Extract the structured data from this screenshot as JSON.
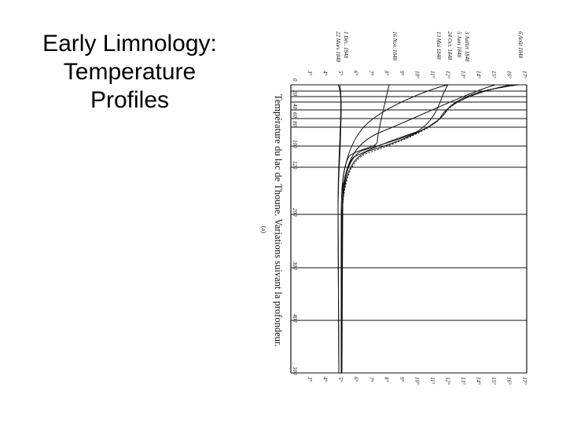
{
  "slide": {
    "title_lines": [
      "Early Limnology:",
      "Temperature",
      "Profiles"
    ]
  },
  "figure": {
    "caption": "Température du lac de Thoune. Variations suivant la profondeur.",
    "panel_label": "(a)",
    "depth_labels": [
      "0",
      "20",
      "40",
      "60",
      "80",
      "100",
      "120",
      "200",
      "300",
      "400",
      "500"
    ],
    "temperature_labels": [
      "3°",
      "4°",
      "5°",
      "6°",
      "7°",
      "8°",
      "9°",
      "10°",
      "11°",
      "12°",
      "13°",
      "14°",
      "15°",
      "16°",
      "17°"
    ],
    "profile_labels": [
      "22 Mars 1848",
      "1 Déc. 1848",
      "16 Nov. 1848",
      "13 Mai 1848",
      "24 Oct. 1848",
      "5 Juin 1848",
      "3 Juillet 1848",
      "6 Août 1848"
    ],
    "colors": {
      "ink": "#111111",
      "paper": "#ffffff"
    }
  }
}
